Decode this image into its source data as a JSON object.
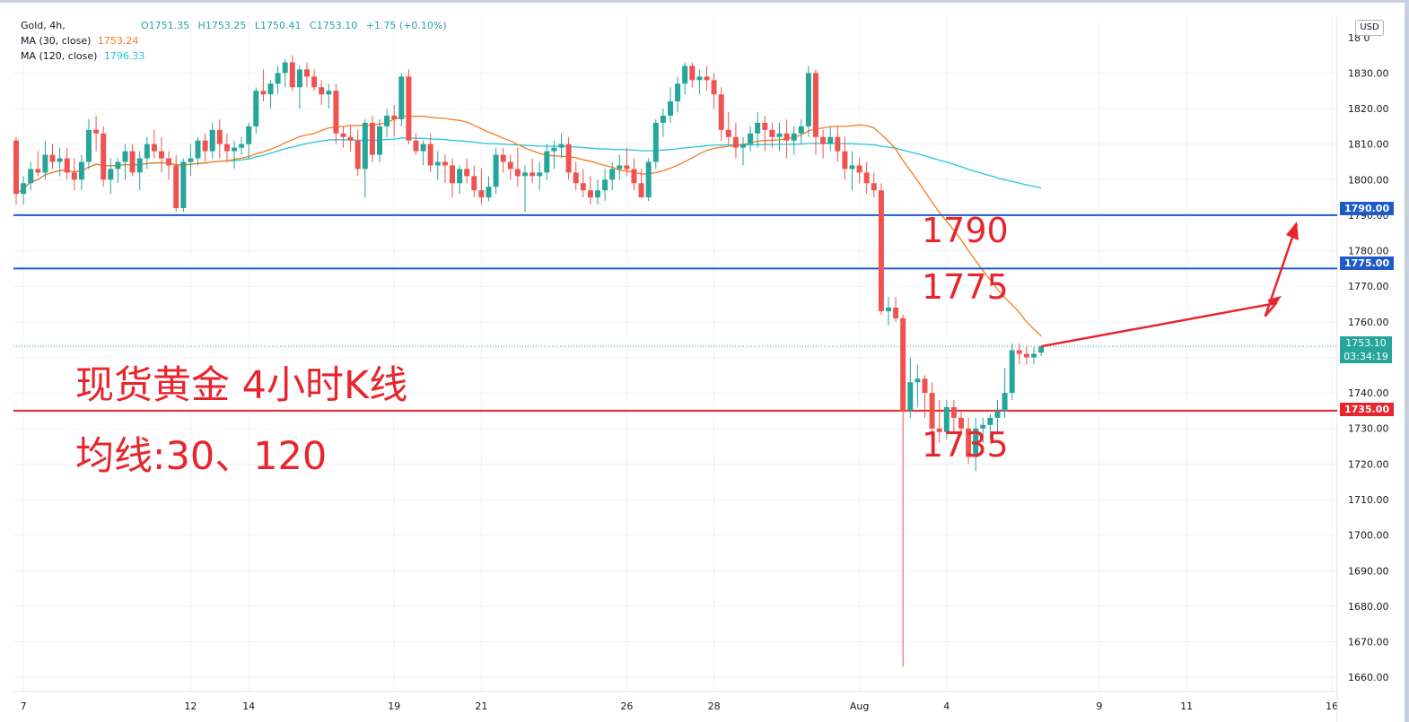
{
  "legend": {
    "symbol": "Gold, 4h,",
    "ohlc": {
      "open": "O1751.35",
      "high": "H1753.25",
      "low": "L1750.41",
      "close": "C1753.10",
      "change": "+1.75 (+0.10%)"
    },
    "ma30_label": "MA (30, close)",
    "ma30_value": "1753.24",
    "ma120_label": "MA (120, close)",
    "ma120_value": "1796.33"
  },
  "currency_badge": "USD",
  "price_tags": {
    "level_1790": "1790.00",
    "level_1775": "1775.00",
    "level_1735": "1735.00",
    "last_price": "1753.10",
    "countdown": "03:34:19"
  },
  "annotations": {
    "title": "现货黄金 4小时K线",
    "subtitle": "均线:30、120",
    "label_1790": "1790",
    "label_1775": "1775",
    "label_1735": "1735"
  },
  "colors": {
    "up": "#26a69a",
    "down": "#ef5350",
    "ma30": "#f57c1f",
    "ma120": "#26c6da",
    "support_blue": "#1e5bc6",
    "support_red": "#e8252c",
    "annotation": "#e8252c"
  },
  "chart_data": {
    "type": "candlestick",
    "title": "Gold, 4h,",
    "timeframe": "4h",
    "y_axis": {
      "ylim": [
        1656,
        1846
      ],
      "tick_labels": [
        "1660.00",
        "1670.00",
        "1680.00",
        "1690.00",
        "1700.00",
        "1710.00",
        "1720.00",
        "1730.00",
        "1740.00",
        "1750.00",
        "1760.00",
        "1770.00",
        "1780.00",
        "1790.00",
        "1800.00",
        "1810.00",
        "1820.00",
        "1830.00"
      ],
      "top_label": "18",
      "top_label_suffix": "0"
    },
    "x_axis": {
      "tick_labels": [
        "7",
        "12",
        "14",
        "19",
        "21",
        "26",
        "28",
        "Aug",
        "4",
        "9",
        "11",
        "16"
      ],
      "tick_index": [
        1,
        24,
        32,
        52,
        64,
        84,
        96,
        116,
        128,
        149,
        161,
        181
      ]
    },
    "grid": true,
    "horizontal_levels": [
      {
        "value": 1790,
        "color": "#1e5bc6"
      },
      {
        "value": 1775,
        "color": "#1e5bc6"
      },
      {
        "value": 1735,
        "color": "#e8252c"
      }
    ],
    "last_price": 1753.1,
    "candles": [
      [
        1811,
        1812,
        1793,
        1796
      ],
      [
        1796,
        1801,
        1793,
        1799
      ],
      [
        1799,
        1805,
        1797,
        1803
      ],
      [
        1803,
        1808,
        1801,
        1802
      ],
      [
        1802,
        1811,
        1800,
        1807
      ],
      [
        1807,
        1810,
        1803,
        1805
      ],
      [
        1805,
        1809,
        1801,
        1806
      ],
      [
        1806,
        1809,
        1800,
        1802
      ],
      [
        1802,
        1806,
        1797,
        1800
      ],
      [
        1800,
        1807,
        1797,
        1805
      ],
      [
        1805,
        1817,
        1803,
        1814
      ],
      [
        1814,
        1818,
        1808,
        1813
      ],
      [
        1813,
        1815,
        1798,
        1800
      ],
      [
        1800,
        1806,
        1796,
        1803
      ],
      [
        1803,
        1806,
        1799,
        1805
      ],
      [
        1805,
        1810,
        1800,
        1808
      ],
      [
        1808,
        1810,
        1801,
        1802
      ],
      [
        1802,
        1808,
        1797,
        1806
      ],
      [
        1806,
        1812,
        1803,
        1810
      ],
      [
        1810,
        1814,
        1806,
        1808
      ],
      [
        1808,
        1812,
        1802,
        1806
      ],
      [
        1806,
        1808,
        1800,
        1804
      ],
      [
        1804,
        1807,
        1791,
        1792
      ],
      [
        1792,
        1806,
        1791,
        1805
      ],
      [
        1805,
        1810,
        1801,
        1806
      ],
      [
        1806,
        1812,
        1804,
        1811
      ],
      [
        1811,
        1813,
        1805,
        1808
      ],
      [
        1808,
        1816,
        1806,
        1814
      ],
      [
        1814,
        1817,
        1806,
        1810
      ],
      [
        1810,
        1813,
        1805,
        1808
      ],
      [
        1808,
        1811,
        1803,
        1809
      ],
      [
        1809,
        1812,
        1807,
        1810
      ],
      [
        1810,
        1816,
        1806,
        1815
      ],
      [
        1815,
        1826,
        1813,
        1825
      ],
      [
        1825,
        1831,
        1822,
        1824
      ],
      [
        1824,
        1828,
        1820,
        1827
      ],
      [
        1827,
        1832,
        1824,
        1830
      ],
      [
        1830,
        1834,
        1826,
        1833
      ],
      [
        1833,
        1835,
        1825,
        1826
      ],
      [
        1826,
        1832,
        1820,
        1831
      ],
      [
        1831,
        1833,
        1826,
        1829
      ],
      [
        1829,
        1831,
        1825,
        1826
      ],
      [
        1826,
        1828,
        1821,
        1824
      ],
      [
        1824,
        1827,
        1820,
        1825
      ],
      [
        1825,
        1827,
        1810,
        1813
      ],
      [
        1813,
        1815,
        1809,
        1812
      ],
      [
        1812,
        1815,
        1808,
        1811
      ],
      [
        1811,
        1814,
        1801,
        1803
      ],
      [
        1803,
        1817,
        1795,
        1816
      ],
      [
        1816,
        1818,
        1805,
        1807
      ],
      [
        1807,
        1817,
        1805,
        1815
      ],
      [
        1815,
        1820,
        1812,
        1818
      ],
      [
        1818,
        1821,
        1812,
        1817
      ],
      [
        1817,
        1830,
        1815,
        1829
      ],
      [
        1829,
        1831,
        1810,
        1811
      ],
      [
        1811,
        1813,
        1807,
        1808
      ],
      [
        1808,
        1811,
        1804,
        1810
      ],
      [
        1810,
        1813,
        1802,
        1804
      ],
      [
        1804,
        1808,
        1800,
        1805
      ],
      [
        1805,
        1807,
        1799,
        1804
      ],
      [
        1804,
        1806,
        1795,
        1799
      ],
      [
        1799,
        1804,
        1796,
        1803
      ],
      [
        1803,
        1806,
        1799,
        1801
      ],
      [
        1801,
        1804,
        1795,
        1797
      ],
      [
        1797,
        1803,
        1793,
        1795
      ],
      [
        1795,
        1801,
        1794,
        1798
      ],
      [
        1798,
        1809,
        1796,
        1807
      ],
      [
        1807,
        1809,
        1802,
        1805
      ],
      [
        1805,
        1807,
        1800,
        1803
      ],
      [
        1803,
        1809,
        1798,
        1801
      ],
      [
        1801,
        1804,
        1791,
        1802
      ],
      [
        1802,
        1806,
        1799,
        1801
      ],
      [
        1801,
        1805,
        1797,
        1802
      ],
      [
        1802,
        1810,
        1800,
        1808
      ],
      [
        1808,
        1811,
        1803,
        1809
      ],
      [
        1809,
        1813,
        1806,
        1810
      ],
      [
        1810,
        1812,
        1800,
        1802
      ],
      [
        1802,
        1805,
        1797,
        1799
      ],
      [
        1799,
        1803,
        1795,
        1797
      ],
      [
        1797,
        1801,
        1793,
        1795
      ],
      [
        1795,
        1800,
        1793,
        1797
      ],
      [
        1797,
        1803,
        1794,
        1800
      ],
      [
        1800,
        1805,
        1797,
        1803
      ],
      [
        1803,
        1807,
        1800,
        1804
      ],
      [
        1804,
        1809,
        1801,
        1803
      ],
      [
        1803,
        1806,
        1797,
        1799
      ],
      [
        1799,
        1803,
        1795,
        1795
      ],
      [
        1795,
        1806,
        1794,
        1805
      ],
      [
        1805,
        1817,
        1803,
        1816
      ],
      [
        1816,
        1820,
        1812,
        1818
      ],
      [
        1818,
        1826,
        1816,
        1822
      ],
      [
        1822,
        1829,
        1819,
        1827
      ],
      [
        1827,
        1833,
        1824,
        1832
      ],
      [
        1832,
        1833,
        1826,
        1828
      ],
      [
        1828,
        1831,
        1824,
        1829
      ],
      [
        1829,
        1832,
        1825,
        1828
      ],
      [
        1828,
        1830,
        1820,
        1824
      ],
      [
        1824,
        1826,
        1811,
        1814
      ],
      [
        1814,
        1819,
        1810,
        1812
      ],
      [
        1812,
        1816,
        1806,
        1809
      ],
      [
        1809,
        1812,
        1804,
        1810
      ],
      [
        1810,
        1815,
        1808,
        1813
      ],
      [
        1813,
        1819,
        1809,
        1816
      ],
      [
        1816,
        1818,
        1808,
        1814
      ],
      [
        1814,
        1816,
        1809,
        1812
      ],
      [
        1812,
        1816,
        1808,
        1813
      ],
      [
        1813,
        1817,
        1806,
        1811
      ],
      [
        1811,
        1815,
        1807,
        1813
      ],
      [
        1813,
        1817,
        1810,
        1815
      ],
      [
        1815,
        1832,
        1812,
        1830
      ],
      [
        1830,
        1831,
        1807,
        1812
      ],
      [
        1812,
        1814,
        1806,
        1810
      ],
      [
        1810,
        1815,
        1808,
        1812
      ],
      [
        1812,
        1815,
        1805,
        1808
      ],
      [
        1808,
        1812,
        1800,
        1803
      ],
      [
        1803,
        1808,
        1797,
        1804
      ],
      [
        1804,
        1806,
        1799,
        1802
      ],
      [
        1802,
        1805,
        1796,
        1799
      ],
      [
        1799,
        1802,
        1795,
        1797
      ],
      [
        1797,
        1799,
        1762,
        1763
      ],
      [
        1763,
        1767,
        1759,
        1764
      ],
      [
        1764,
        1767,
        1760,
        1761
      ],
      [
        1761,
        1762,
        1663,
        1735
      ],
      [
        1735,
        1750,
        1733,
        1743
      ],
      [
        1743,
        1748,
        1736,
        1744
      ],
      [
        1744,
        1745,
        1733,
        1740
      ],
      [
        1740,
        1743,
        1724,
        1730
      ],
      [
        1730,
        1738,
        1726,
        1729
      ],
      [
        1729,
        1738,
        1727,
        1736
      ],
      [
        1736,
        1738,
        1729,
        1733
      ],
      [
        1733,
        1735,
        1728,
        1730
      ],
      [
        1730,
        1733,
        1720,
        1722
      ],
      [
        1722,
        1733,
        1718,
        1730
      ],
      [
        1730,
        1733,
        1726,
        1731
      ],
      [
        1731,
        1734,
        1727,
        1733
      ],
      [
        1733,
        1738,
        1729,
        1735
      ],
      [
        1735,
        1747,
        1733,
        1740
      ],
      [
        1740,
        1754,
        1738,
        1752
      ],
      [
        1752,
        1754,
        1748,
        1751
      ],
      [
        1751,
        1753,
        1748,
        1750
      ],
      [
        1750,
        1753,
        1748,
        1751
      ],
      [
        1751.35,
        1753.25,
        1750.41,
        1753.1
      ]
    ],
    "series": [
      {
        "name": "MA (30, close)",
        "color": "#f57c1f"
      },
      {
        "name": "MA (120, close)",
        "color": "#26c6da"
      }
    ]
  }
}
